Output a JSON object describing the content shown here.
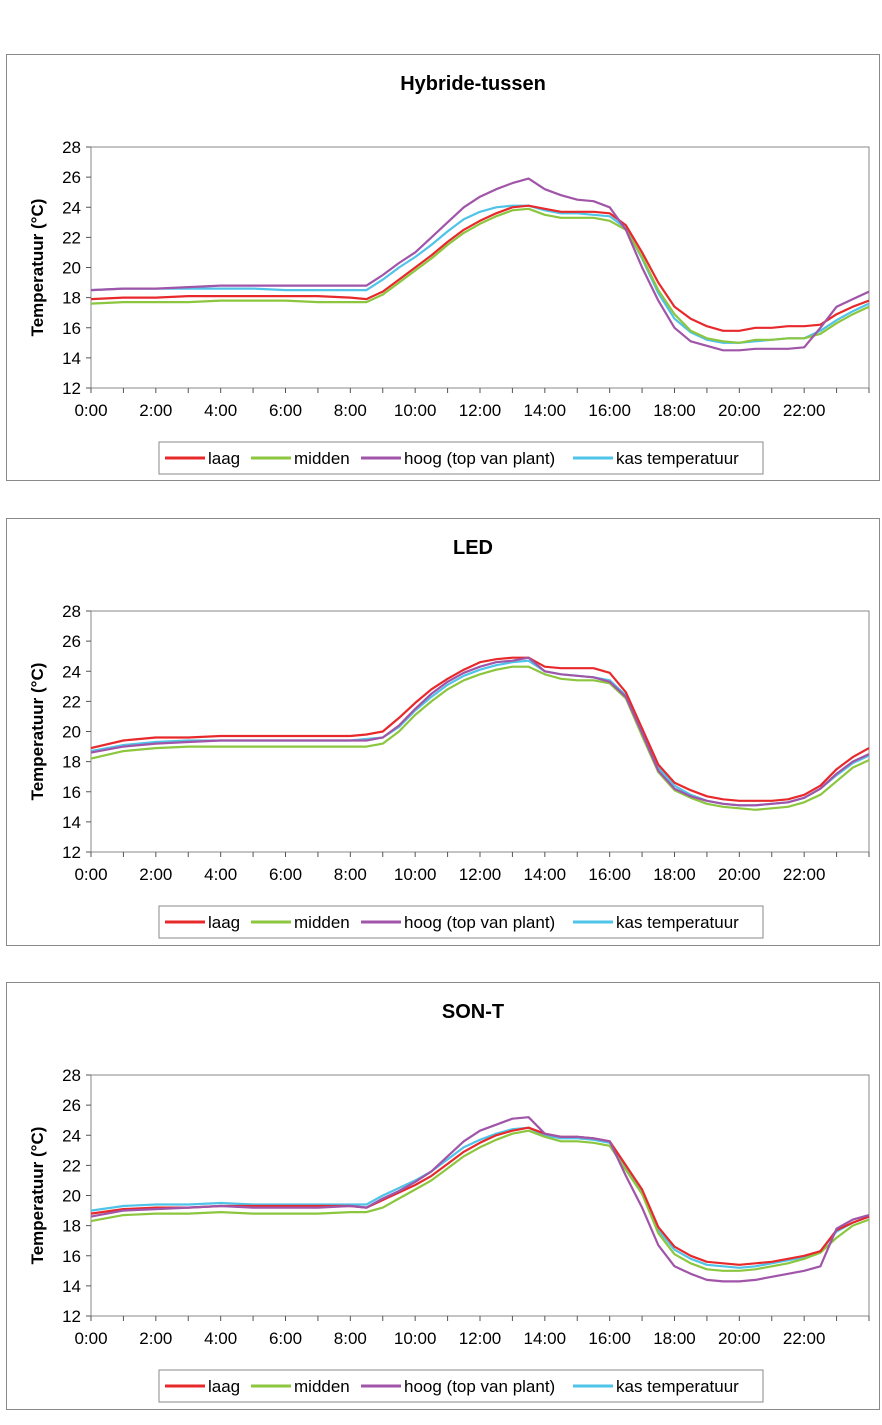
{
  "chart_data": [
    {
      "type": "line",
      "title": "Hybride-tussen",
      "ylabel": "Temperatuur (°C)",
      "xlabel": "",
      "ylim": [
        12,
        28
      ],
      "yticks": [
        "12",
        "14",
        "16",
        "18",
        "20",
        "22",
        "24",
        "26",
        "28"
      ],
      "xticks": [
        "0:00",
        "2:00",
        "4:00",
        "6:00",
        "8:00",
        "10:00",
        "12:00",
        "14:00",
        "16:00",
        "18:00",
        "20:00",
        "22:00"
      ],
      "x": [
        0,
        1,
        2,
        3,
        4,
        5,
        6,
        7,
        8,
        8.5,
        9,
        9.5,
        10,
        10.5,
        11,
        11.5,
        12,
        12.5,
        13,
        13.5,
        14,
        14.5,
        15,
        15.5,
        16,
        16.5,
        17,
        17.5,
        18,
        18.5,
        19,
        19.5,
        20,
        20.5,
        21,
        21.5,
        22,
        22.5,
        23,
        23.5,
        24
      ],
      "grid": false,
      "legend": "bottom",
      "series": [
        {
          "name": "laag",
          "color": "#e8292b",
          "values": [
            17.9,
            18,
            18,
            18.1,
            18.1,
            18.1,
            18.1,
            18.1,
            18,
            17.9,
            18.4,
            19.2,
            20,
            20.8,
            21.7,
            22.5,
            23.1,
            23.6,
            24,
            24.1,
            23.9,
            23.7,
            23.7,
            23.7,
            23.6,
            22.8,
            21,
            19,
            17.4,
            16.6,
            16.1,
            15.8,
            15.8,
            16,
            16,
            16.1,
            16.1,
            16.2,
            16.9,
            17.4,
            17.8
          ]
        },
        {
          "name": "midden",
          "color": "#8cc63f",
          "values": [
            17.6,
            17.7,
            17.7,
            17.7,
            17.8,
            17.8,
            17.8,
            17.7,
            17.7,
            17.7,
            18.2,
            19,
            19.8,
            20.6,
            21.5,
            22.3,
            22.9,
            23.4,
            23.8,
            23.9,
            23.5,
            23.3,
            23.3,
            23.3,
            23.1,
            22.5,
            20.7,
            18.5,
            16.9,
            15.8,
            15.3,
            15.1,
            15,
            15.2,
            15.2,
            15.3,
            15.3,
            15.6,
            16.3,
            16.9,
            17.4
          ]
        },
        {
          "name": "hoog (top van plant)",
          "color": "#a055a8",
          "values": [
            18.5,
            18.6,
            18.6,
            18.7,
            18.8,
            18.8,
            18.8,
            18.8,
            18.8,
            18.8,
            19.5,
            20.3,
            21,
            22,
            23,
            24,
            24.7,
            25.2,
            25.6,
            25.9,
            25.2,
            24.8,
            24.5,
            24.4,
            24,
            22.5,
            20,
            17.8,
            16,
            15.1,
            14.8,
            14.5,
            14.5,
            14.6,
            14.6,
            14.6,
            14.7,
            16,
            17.4,
            17.9,
            18.4
          ]
        },
        {
          "name": "kas temperatuur",
          "color": "#4fc3e8",
          "values": [
            18.5,
            18.6,
            18.6,
            18.6,
            18.6,
            18.6,
            18.5,
            18.5,
            18.5,
            18.5,
            19.2,
            20,
            20.7,
            21.5,
            22.4,
            23.2,
            23.7,
            24,
            24.1,
            24.1,
            23.8,
            23.6,
            23.6,
            23.5,
            23.4,
            22.6,
            20.6,
            18.3,
            16.6,
            15.7,
            15.2,
            15,
            15,
            15.1,
            15.2,
            15.3,
            15.3,
            15.8,
            16.5,
            17.1,
            17.6
          ]
        }
      ]
    },
    {
      "type": "line",
      "title": "LED",
      "ylabel": "Temperatuur (°C)",
      "xlabel": "",
      "ylim": [
        12,
        28
      ],
      "yticks": [
        "12",
        "14",
        "16",
        "18",
        "20",
        "22",
        "24",
        "26",
        "28"
      ],
      "xticks": [
        "0:00",
        "2:00",
        "4:00",
        "6:00",
        "8:00",
        "10:00",
        "12:00",
        "14:00",
        "16:00",
        "18:00",
        "20:00",
        "22:00"
      ],
      "x": [
        0,
        1,
        2,
        3,
        4,
        5,
        6,
        7,
        8,
        8.5,
        9,
        9.5,
        10,
        10.5,
        11,
        11.5,
        12,
        12.5,
        13,
        13.5,
        14,
        14.5,
        15,
        15.5,
        16,
        16.5,
        17,
        17.5,
        18,
        18.5,
        19,
        19.5,
        20,
        20.5,
        21,
        21.5,
        22,
        22.5,
        23,
        23.5,
        24
      ],
      "grid": false,
      "legend": "bottom",
      "series": [
        {
          "name": "laag",
          "color": "#e8292b",
          "values": [
            18.9,
            19.4,
            19.6,
            19.6,
            19.7,
            19.7,
            19.7,
            19.7,
            19.7,
            19.8,
            20,
            20.9,
            21.9,
            22.8,
            23.5,
            24.1,
            24.6,
            24.8,
            24.9,
            24.9,
            24.3,
            24.2,
            24.2,
            24.2,
            23.9,
            22.6,
            20.2,
            17.8,
            16.6,
            16.1,
            15.7,
            15.5,
            15.4,
            15.4,
            15.4,
            15.5,
            15.8,
            16.4,
            17.5,
            18.3,
            18.9
          ]
        },
        {
          "name": "midden",
          "color": "#8cc63f",
          "values": [
            18.2,
            18.7,
            18.9,
            19,
            19,
            19,
            19,
            19,
            19,
            19,
            19.2,
            20,
            21.1,
            22,
            22.8,
            23.4,
            23.8,
            24.1,
            24.3,
            24.3,
            23.8,
            23.5,
            23.4,
            23.4,
            23.2,
            22.2,
            19.7,
            17.3,
            16.1,
            15.6,
            15.2,
            15,
            14.9,
            14.8,
            14.9,
            15,
            15.3,
            15.8,
            16.7,
            17.6,
            18.1
          ]
        },
        {
          "name": "hoog (top van plant)",
          "color": "#a055a8",
          "values": [
            18.6,
            19,
            19.2,
            19.3,
            19.4,
            19.4,
            19.4,
            19.4,
            19.4,
            19.4,
            19.6,
            20.4,
            21.5,
            22.5,
            23.3,
            23.9,
            24.3,
            24.6,
            24.7,
            24.9,
            24,
            23.8,
            23.7,
            23.6,
            23.3,
            22.3,
            19.9,
            17.4,
            16.2,
            15.7,
            15.4,
            15.2,
            15.1,
            15.1,
            15.2,
            15.3,
            15.6,
            16.2,
            17.2,
            18,
            18.5
          ]
        },
        {
          "name": "kas temperatuur",
          "color": "#4fc3e8",
          "values": [
            18.7,
            19.1,
            19.3,
            19.4,
            19.4,
            19.4,
            19.4,
            19.4,
            19.4,
            19.5,
            19.6,
            20.3,
            21.4,
            22.3,
            23.1,
            23.7,
            24.1,
            24.4,
            24.6,
            24.7,
            24,
            23.8,
            23.7,
            23.6,
            23.4,
            22.4,
            20,
            17.6,
            16.4,
            15.8,
            15.4,
            15.2,
            15.1,
            15.1,
            15.2,
            15.3,
            15.6,
            16.2,
            17.1,
            17.9,
            18.4
          ]
        }
      ]
    },
    {
      "type": "line",
      "title": "SON-T",
      "ylabel": "Temperatuur (°C)",
      "xlabel": "",
      "ylim": [
        12,
        28
      ],
      "yticks": [
        "12",
        "14",
        "16",
        "18",
        "20",
        "22",
        "24",
        "26",
        "28"
      ],
      "xticks": [
        "0:00",
        "2:00",
        "4:00",
        "6:00",
        "8:00",
        "10:00",
        "12:00",
        "14:00",
        "16:00",
        "18:00",
        "20:00",
        "22:00"
      ],
      "x": [
        0,
        1,
        2,
        3,
        4,
        5,
        6,
        7,
        8,
        8.5,
        9,
        9.5,
        10,
        10.5,
        11,
        11.5,
        12,
        12.5,
        13,
        13.5,
        14,
        14.5,
        15,
        15.5,
        16,
        16.5,
        17,
        17.5,
        18,
        18.5,
        19,
        19.5,
        20,
        20.5,
        21,
        21.5,
        22,
        22.5,
        23,
        23.5,
        24
      ],
      "grid": false,
      "legend": "bottom",
      "series": [
        {
          "name": "laag",
          "color": "#e8292b",
          "values": [
            18.8,
            19.1,
            19.2,
            19.2,
            19.3,
            19.3,
            19.3,
            19.3,
            19.3,
            19.2,
            19.7,
            20.2,
            20.7,
            21.3,
            22.1,
            22.9,
            23.5,
            24,
            24.3,
            24.5,
            24.1,
            23.9,
            23.9,
            23.8,
            23.6,
            22,
            20.4,
            17.9,
            16.6,
            16,
            15.6,
            15.5,
            15.4,
            15.5,
            15.6,
            15.8,
            16,
            16.3,
            17.7,
            18.2,
            18.6
          ]
        },
        {
          "name": "midden",
          "color": "#8cc63f",
          "values": [
            18.3,
            18.7,
            18.8,
            18.8,
            18.9,
            18.8,
            18.8,
            18.8,
            18.9,
            18.9,
            19.2,
            19.8,
            20.4,
            21,
            21.8,
            22.6,
            23.2,
            23.7,
            24.1,
            24.3,
            23.9,
            23.6,
            23.6,
            23.5,
            23.3,
            21.7,
            20.1,
            17.5,
            16.1,
            15.5,
            15.1,
            15,
            15,
            15.1,
            15.3,
            15.5,
            15.8,
            16.2,
            17.2,
            18,
            18.4
          ]
        },
        {
          "name": "hoog (top van plant)",
          "color": "#a055a8",
          "values": [
            18.6,
            19,
            19.1,
            19.2,
            19.3,
            19.2,
            19.2,
            19.2,
            19.3,
            19.2,
            19.8,
            20.3,
            20.9,
            21.6,
            22.6,
            23.6,
            24.3,
            24.7,
            25.1,
            25.2,
            24.1,
            23.9,
            23.9,
            23.8,
            23.6,
            21.3,
            19.2,
            16.7,
            15.3,
            14.8,
            14.4,
            14.3,
            14.3,
            14.4,
            14.6,
            14.8,
            15,
            15.3,
            17.8,
            18.4,
            18.7
          ]
        },
        {
          "name": "kas temperatuur",
          "color": "#4fc3e8",
          "values": [
            19,
            19.3,
            19.4,
            19.4,
            19.5,
            19.4,
            19.4,
            19.4,
            19.4,
            19.4,
            20,
            20.5,
            21,
            21.6,
            22.4,
            23.2,
            23.7,
            24.1,
            24.4,
            24.5,
            24,
            23.8,
            23.8,
            23.7,
            23.5,
            21.9,
            20.2,
            17.7,
            16.4,
            15.8,
            15.4,
            15.3,
            15.2,
            15.3,
            15.5,
            15.7,
            15.9,
            16.3,
            17.6,
            18.2,
            18.6
          ]
        }
      ]
    }
  ]
}
